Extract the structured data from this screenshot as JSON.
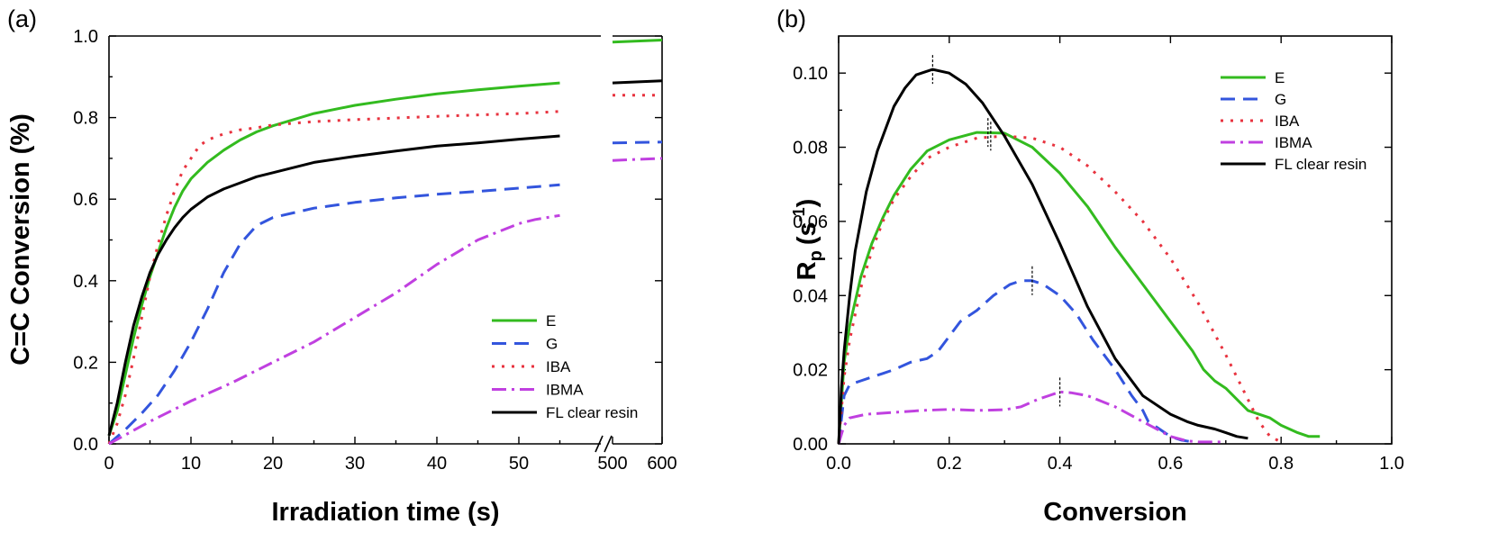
{
  "colors": {
    "E": "#33bb1f",
    "G": "#3355dd",
    "IBA": "#e8333f",
    "IBMA": "#c040e0",
    "FL clear resin": "#000000"
  },
  "chart_data": [
    {
      "panel": "(a)",
      "type": "line",
      "xlabel": "Irradiation time (s)",
      "ylabel": "C=C Conversion (%)",
      "xlim": [
        0,
        60
      ],
      "ylim": [
        0,
        1.0
      ],
      "x_ticks": [
        0,
        10,
        20,
        30,
        40,
        50
      ],
      "y_ticks": [
        0.0,
        0.2,
        0.4,
        0.6,
        0.8,
        1.0
      ],
      "y_tick_labels": [
        "0.0",
        "0.2",
        "0.4",
        "0.6",
        "0.8",
        "1.0"
      ],
      "axis_break": {
        "after_x": 60,
        "segment_ticks": [
          500,
          600
        ]
      },
      "grid": false,
      "legend_position": "bottom-right",
      "series": [
        {
          "name": "E",
          "style": "solid",
          "x": [
            0,
            1,
            2,
            3,
            4,
            5,
            6,
            7,
            8,
            9,
            10,
            12,
            14,
            16,
            18,
            20,
            25,
            30,
            35,
            40,
            45,
            50,
            55
          ],
          "y": [
            0.02,
            0.08,
            0.17,
            0.26,
            0.34,
            0.41,
            0.47,
            0.53,
            0.58,
            0.62,
            0.65,
            0.69,
            0.72,
            0.745,
            0.765,
            0.78,
            0.81,
            0.83,
            0.845,
            0.858,
            0.868,
            0.877,
            0.885
          ],
          "segment_x": [
            500,
            600
          ],
          "segment_y": [
            0.985,
            0.99
          ]
        },
        {
          "name": "G",
          "style": "dash",
          "x": [
            0,
            2,
            4,
            6,
            8,
            10,
            12,
            14,
            16,
            18,
            20,
            25,
            30,
            35,
            40,
            45,
            50,
            55
          ],
          "y": [
            0.0,
            0.035,
            0.075,
            0.12,
            0.18,
            0.25,
            0.33,
            0.42,
            0.49,
            0.535,
            0.555,
            0.578,
            0.592,
            0.603,
            0.612,
            0.619,
            0.627,
            0.635
          ],
          "segment_x": [
            500,
            600
          ],
          "segment_y": [
            0.738,
            0.74
          ]
        },
        {
          "name": "IBA",
          "style": "dot",
          "x": [
            0,
            1,
            2,
            3,
            4,
            5,
            6,
            7,
            8,
            9,
            10,
            11,
            12,
            14,
            16,
            18,
            20,
            25,
            30,
            40,
            50,
            55
          ],
          "y": [
            0.0,
            0.05,
            0.12,
            0.21,
            0.31,
            0.41,
            0.49,
            0.56,
            0.62,
            0.67,
            0.7,
            0.73,
            0.745,
            0.76,
            0.77,
            0.775,
            0.782,
            0.79,
            0.795,
            0.803,
            0.81,
            0.815
          ],
          "segment_x": [
            500,
            600
          ],
          "segment_y": [
            0.855,
            0.855
          ]
        },
        {
          "name": "IBMA",
          "style": "dashdot",
          "x": [
            0,
            5,
            10,
            15,
            20,
            25,
            30,
            35,
            40,
            45,
            50,
            52,
            55
          ],
          "y": [
            0.0,
            0.055,
            0.105,
            0.15,
            0.2,
            0.25,
            0.31,
            0.37,
            0.44,
            0.5,
            0.54,
            0.55,
            0.56
          ],
          "segment_x": [
            500,
            600
          ],
          "segment_y": [
            0.695,
            0.7
          ]
        },
        {
          "name": "FL clear resin",
          "style": "solid",
          "x": [
            0,
            1,
            2,
            3,
            4,
            5,
            6,
            7,
            8,
            9,
            10,
            12,
            14,
            16,
            18,
            20,
            25,
            30,
            35,
            40,
            45,
            50,
            55
          ],
          "y": [
            0.02,
            0.1,
            0.2,
            0.29,
            0.36,
            0.42,
            0.465,
            0.5,
            0.53,
            0.555,
            0.575,
            0.605,
            0.625,
            0.64,
            0.655,
            0.665,
            0.69,
            0.705,
            0.718,
            0.73,
            0.738,
            0.747,
            0.755
          ],
          "segment_x": [
            500,
            600
          ],
          "segment_y": [
            0.885,
            0.89
          ]
        }
      ]
    },
    {
      "panel": "(b)",
      "type": "line",
      "xlabel": "Conversion",
      "ylabel": "R",
      "ylabel_sub": "p",
      "ylabel_unit": "(s",
      "ylabel_sup": "-1",
      "ylabel_close": ")",
      "xlim": [
        0,
        1.0
      ],
      "ylim": [
        0,
        0.11
      ],
      "x_ticks": [
        0.0,
        0.2,
        0.4,
        0.6,
        0.8,
        1.0
      ],
      "x_tick_labels": [
        "0.0",
        "0.2",
        "0.4",
        "0.6",
        "0.8",
        "1.0"
      ],
      "y_ticks": [
        0.0,
        0.02,
        0.04,
        0.06,
        0.08,
        0.1
      ],
      "y_tick_labels": [
        "0.00",
        "0.02",
        "0.04",
        "0.06",
        "0.08",
        "0.10"
      ],
      "grid": false,
      "legend_position": "top-right",
      "peak_markers": [
        {
          "x": 0.17,
          "y": 0.101
        },
        {
          "x": 0.27,
          "y": 0.084
        },
        {
          "x": 0.275,
          "y": 0.083
        },
        {
          "x": 0.35,
          "y": 0.044
        },
        {
          "x": 0.4,
          "y": 0.014
        }
      ],
      "series": [
        {
          "name": "E",
          "style": "solid",
          "x": [
            0.0,
            0.01,
            0.02,
            0.04,
            0.06,
            0.08,
            0.1,
            0.13,
            0.16,
            0.2,
            0.25,
            0.3,
            0.35,
            0.4,
            0.45,
            0.5,
            0.55,
            0.6,
            0.64,
            0.66,
            0.68,
            0.7,
            0.72,
            0.74,
            0.76,
            0.78,
            0.8,
            0.83,
            0.85,
            0.87
          ],
          "y": [
            0.0,
            0.022,
            0.032,
            0.045,
            0.054,
            0.061,
            0.067,
            0.074,
            0.079,
            0.082,
            0.084,
            0.0838,
            0.08,
            0.073,
            0.064,
            0.053,
            0.043,
            0.033,
            0.025,
            0.02,
            0.017,
            0.015,
            0.012,
            0.009,
            0.008,
            0.007,
            0.005,
            0.003,
            0.002,
            0.002
          ]
        },
        {
          "name": "G",
          "style": "dash",
          "x": [
            0.0,
            0.01,
            0.02,
            0.04,
            0.06,
            0.08,
            0.1,
            0.13,
            0.16,
            0.18,
            0.2,
            0.22,
            0.25,
            0.28,
            0.31,
            0.33,
            0.35,
            0.37,
            0.4,
            0.43,
            0.46,
            0.5,
            0.53,
            0.55,
            0.56,
            0.58,
            0.6,
            0.62,
            0.64
          ],
          "y": [
            0.0,
            0.013,
            0.016,
            0.017,
            0.018,
            0.019,
            0.02,
            0.022,
            0.023,
            0.025,
            0.029,
            0.033,
            0.036,
            0.04,
            0.043,
            0.044,
            0.044,
            0.043,
            0.04,
            0.035,
            0.028,
            0.02,
            0.013,
            0.009,
            0.006,
            0.004,
            0.002,
            0.001,
            0.0005
          ]
        },
        {
          "name": "IBA",
          "style": "dot",
          "x": [
            0.0,
            0.01,
            0.02,
            0.04,
            0.06,
            0.08,
            0.1,
            0.13,
            0.16,
            0.2,
            0.25,
            0.3,
            0.35,
            0.4,
            0.45,
            0.5,
            0.55,
            0.6,
            0.65,
            0.7,
            0.74,
            0.76,
            0.78,
            0.8
          ],
          "y": [
            0.0,
            0.018,
            0.028,
            0.042,
            0.052,
            0.06,
            0.066,
            0.072,
            0.077,
            0.08,
            0.0825,
            0.083,
            0.0825,
            0.08,
            0.075,
            0.068,
            0.06,
            0.05,
            0.038,
            0.024,
            0.012,
            0.006,
            0.002,
            0.0005
          ]
        },
        {
          "name": "IBMA",
          "style": "dashdot",
          "x": [
            0.0,
            0.01,
            0.02,
            0.05,
            0.1,
            0.15,
            0.2,
            0.25,
            0.3,
            0.33,
            0.36,
            0.38,
            0.4,
            0.42,
            0.45,
            0.5,
            0.55,
            0.6,
            0.63,
            0.65,
            0.7
          ],
          "y": [
            0.0,
            0.005,
            0.007,
            0.008,
            0.0085,
            0.009,
            0.0093,
            0.009,
            0.0092,
            0.01,
            0.012,
            0.013,
            0.014,
            0.0138,
            0.013,
            0.01,
            0.006,
            0.002,
            0.0008,
            0.0005,
            0.0005
          ]
        },
        {
          "name": "FL clear resin",
          "style": "solid",
          "x": [
            0.0,
            0.005,
            0.01,
            0.02,
            0.03,
            0.05,
            0.07,
            0.1,
            0.12,
            0.14,
            0.17,
            0.2,
            0.23,
            0.26,
            0.3,
            0.35,
            0.4,
            0.45,
            0.5,
            0.55,
            0.6,
            0.63,
            0.65,
            0.68,
            0.7,
            0.72,
            0.74
          ],
          "y": [
            0.0,
            0.015,
            0.025,
            0.04,
            0.052,
            0.068,
            0.079,
            0.091,
            0.096,
            0.0995,
            0.101,
            0.1,
            0.097,
            0.092,
            0.083,
            0.07,
            0.054,
            0.037,
            0.023,
            0.013,
            0.008,
            0.006,
            0.005,
            0.004,
            0.003,
            0.002,
            0.0015
          ]
        }
      ]
    }
  ]
}
